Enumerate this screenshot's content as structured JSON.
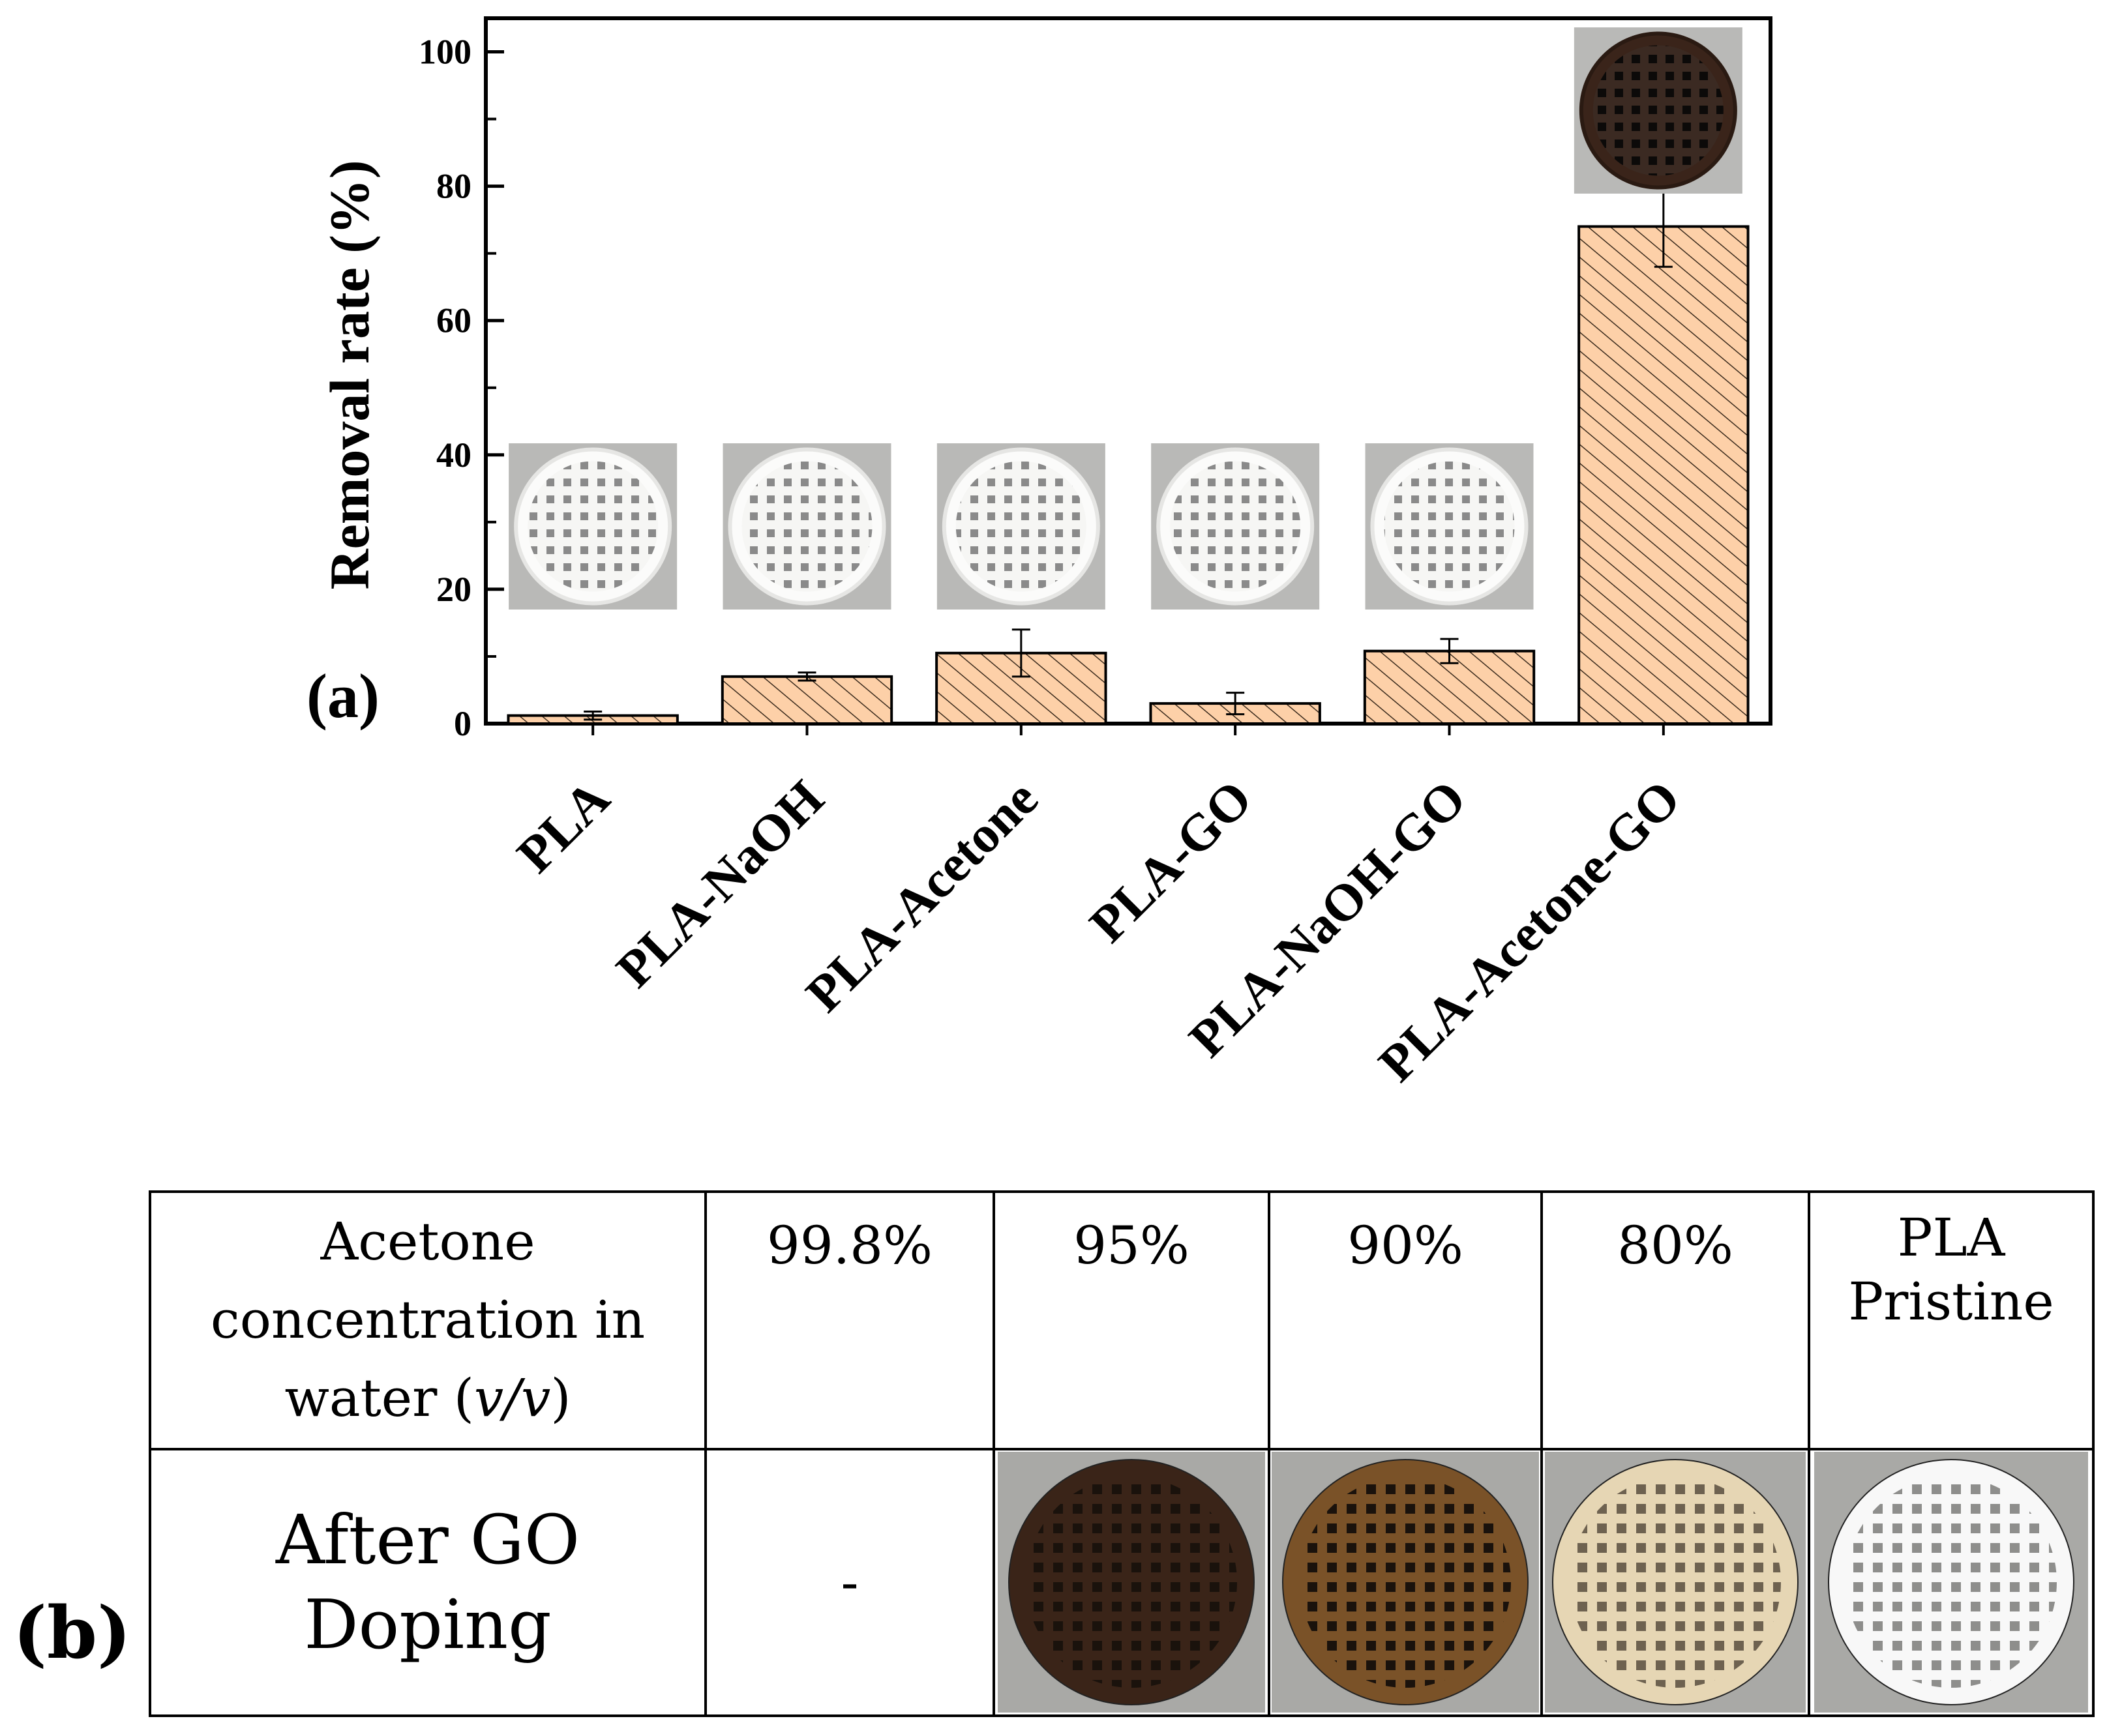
{
  "panel_a": {
    "label": "(a)"
  },
  "chart_data": {
    "type": "bar",
    "title": "",
    "xlabel": "",
    "ylabel": "Removal rate (%)",
    "ylim": [
      0,
      105
    ],
    "yticks": [
      0,
      20,
      40,
      60,
      80,
      100
    ],
    "categories": [
      "PLA",
      "PLA-NaOH",
      "PLA-Acetone",
      "PLA-GO",
      "PLA-NaOH-GO",
      "PLA-Acetone-GO"
    ],
    "values": [
      1.2,
      7.0,
      10.5,
      3.0,
      10.8,
      74.0
    ],
    "errors": [
      0.6,
      0.6,
      3.5,
      1.6,
      1.8,
      6.0
    ],
    "bar_fill": "#fdd0a8",
    "bar_hatch": "////",
    "inset_plates": [
      {
        "category": "PLA",
        "color": "white"
      },
      {
        "category": "PLA-NaOH",
        "color": "white"
      },
      {
        "category": "PLA-Acetone",
        "color": "white"
      },
      {
        "category": "PLA-GO",
        "color": "white"
      },
      {
        "category": "PLA-NaOH-GO",
        "color": "white"
      },
      {
        "category": "PLA-Acetone-GO",
        "color": "dark-brown"
      }
    ]
  },
  "panel_b": {
    "label": "(b)",
    "header": {
      "first_line1": "Acetone",
      "first_line2": "concentration in",
      "first_line3_prefix": "water (",
      "first_line3_italic": "v/v",
      "first_line3_suffix": ")",
      "columns": [
        "99.8%",
        "95%",
        "90%",
        "80%"
      ],
      "last_line1": "PLA",
      "last_line2": "Pristine"
    },
    "row": {
      "head_line1": "After GO",
      "head_line2": "Doping",
      "first_value": "-"
    },
    "plate_colors": {
      "c95": "#3a2418",
      "c90": "#7a5228",
      "c80": "#e6d6b4",
      "pristine": "#f8f8f8"
    }
  }
}
